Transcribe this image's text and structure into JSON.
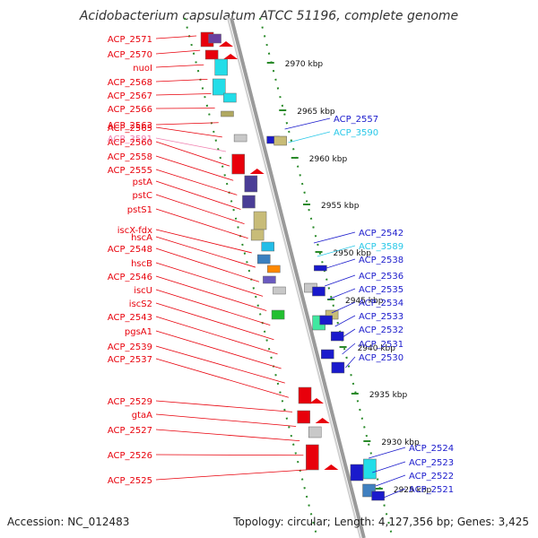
{
  "title": "Acidobacterium capsulatum ATCC 51196, complete genome",
  "footer": {
    "accession": "Accession: NC_012483",
    "summary": "Topology: circular; Length: 4,127,356 bp; Genes: 3,425"
  },
  "colors": {
    "left_label": "#e8000b",
    "right_label": "#1a1acc",
    "pink_label": "#f080b0",
    "cyan_label": "#28c8e8",
    "scale_dash": "#2a8a2a",
    "backbone": "#888888"
  },
  "left_labels": [
    {
      "text": "ACP_2571",
      "color": "red"
    },
    {
      "text": "ACP_2570",
      "color": "red"
    },
    {
      "text": "nuoI",
      "color": "red"
    },
    {
      "text": "ACP_2568",
      "color": "red"
    },
    {
      "text": "ACP_2567",
      "color": "red"
    },
    {
      "text": "ACP_2566",
      "color": "red"
    },
    {
      "text": "ACP_2563",
      "color": "red"
    },
    {
      "text": "ACP_2565",
      "color": "red"
    },
    {
      "text": "ACP_3591",
      "color": "pink"
    },
    {
      "text": "ACP_2560",
      "color": "red"
    },
    {
      "text": "ACP_2558",
      "color": "red"
    },
    {
      "text": "ACP_2555",
      "color": "red"
    },
    {
      "text": "pstA",
      "color": "red"
    },
    {
      "text": "pstC",
      "color": "red"
    },
    {
      "text": "pstS1",
      "color": "red"
    },
    {
      "text": "iscX-fdx",
      "color": "red"
    },
    {
      "text": "hscA",
      "color": "red"
    },
    {
      "text": "ACP_2548",
      "color": "red"
    },
    {
      "text": "hscB",
      "color": "red"
    },
    {
      "text": "ACP_2546",
      "color": "red"
    },
    {
      "text": "iscU",
      "color": "red"
    },
    {
      "text": "iscS2",
      "color": "red"
    },
    {
      "text": "ACP_2543",
      "color": "red"
    },
    {
      "text": "pgsA1",
      "color": "red"
    },
    {
      "text": "ACP_2539",
      "color": "red"
    },
    {
      "text": "ACP_2537",
      "color": "red"
    },
    {
      "text": "ACP_2529",
      "color": "red"
    },
    {
      "text": "gtaA",
      "color": "red"
    },
    {
      "text": "ACP_2527",
      "color": "red"
    },
    {
      "text": "ACP_2526",
      "color": "red"
    },
    {
      "text": "ACP_2525",
      "color": "red"
    }
  ],
  "right_labels": [
    {
      "text": "ACP_2557",
      "color": "blue"
    },
    {
      "text": "ACP_3590",
      "color": "cyan"
    },
    {
      "text": "ACP_2542",
      "color": "blue"
    },
    {
      "text": "ACP_3589",
      "color": "cyan"
    },
    {
      "text": "ACP_2538",
      "color": "blue"
    },
    {
      "text": "ACP_2536",
      "color": "blue"
    },
    {
      "text": "ACP_2535",
      "color": "blue"
    },
    {
      "text": "ACP_2534",
      "color": "blue"
    },
    {
      "text": "ACP_2533",
      "color": "blue"
    },
    {
      "text": "ACP_2532",
      "color": "blue"
    },
    {
      "text": "ACP_2531",
      "color": "blue"
    },
    {
      "text": "ACP_2530",
      "color": "blue"
    },
    {
      "text": "ACP_2524",
      "color": "blue"
    },
    {
      "text": "ACP_2523",
      "color": "blue"
    },
    {
      "text": "ACP_2522",
      "color": "blue"
    },
    {
      "text": "ACP_2521",
      "color": "blue"
    }
  ],
  "scale_labels": [
    "2970 kbp",
    "2965 kbp",
    "2960 kbp",
    "2955 kbp",
    "2950 kbp",
    "2945 kbp",
    "2940 kbp",
    "2935 kbp",
    "2930 kbp",
    "2925 kbp"
  ]
}
